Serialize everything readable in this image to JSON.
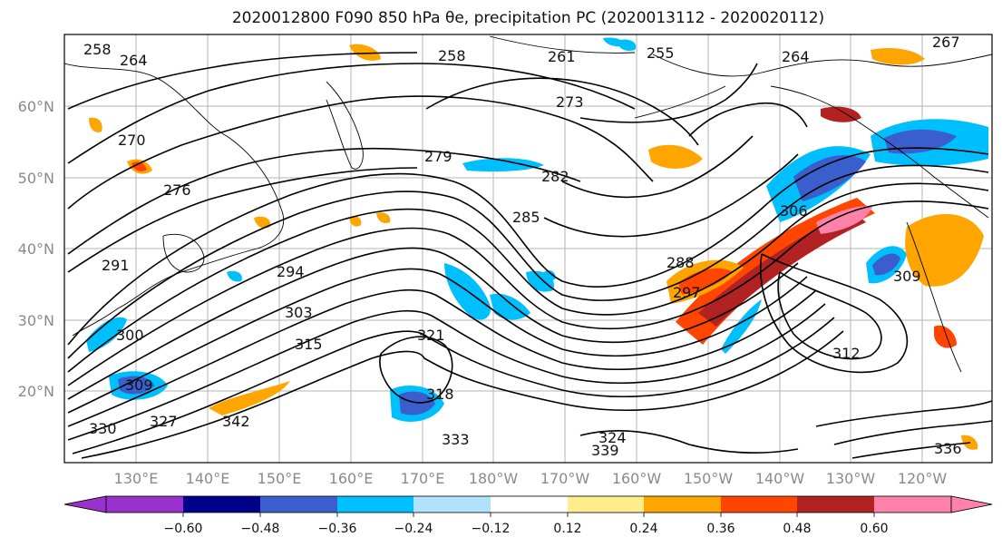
{
  "title": "2020012800 F090 850 hPa θe, precipitation PC (2020013112 - 2020020112)",
  "lat_ticks": [
    "60°N",
    "50°N",
    "40°N",
    "30°N",
    "20°N"
  ],
  "lon_ticks": [
    "130°E",
    "140°E",
    "150°E",
    "160°E",
    "170°E",
    "180°W",
    "170°W",
    "160°W",
    "150°W",
    "140°W",
    "130°W",
    "120°W"
  ],
  "contour_labels": [
    "258",
    "264",
    "258",
    "261",
    "255",
    "264",
    "267",
    "270",
    "273",
    "276",
    "279",
    "282",
    "285",
    "288",
    "291",
    "294",
    "297",
    "300",
    "303",
    "306",
    "309",
    "309",
    "312",
    "315",
    "318",
    "321",
    "324",
    "327",
    "330",
    "333",
    "336",
    "339",
    "342"
  ],
  "colorbar": {
    "ticks": [
      "−0.60",
      "−0.48",
      "−0.36",
      "−0.24",
      "−0.12",
      "0.12",
      "0.24",
      "0.36",
      "0.48",
      "0.60"
    ],
    "colors": [
      "#9932cc",
      "#00008b",
      "#3a5fcd",
      "#00bfff",
      "#b0e2ff",
      "#ffffff",
      "#ffec8b",
      "#ffa500",
      "#ff4500",
      "#b22222",
      "#ff82ab"
    ]
  }
}
